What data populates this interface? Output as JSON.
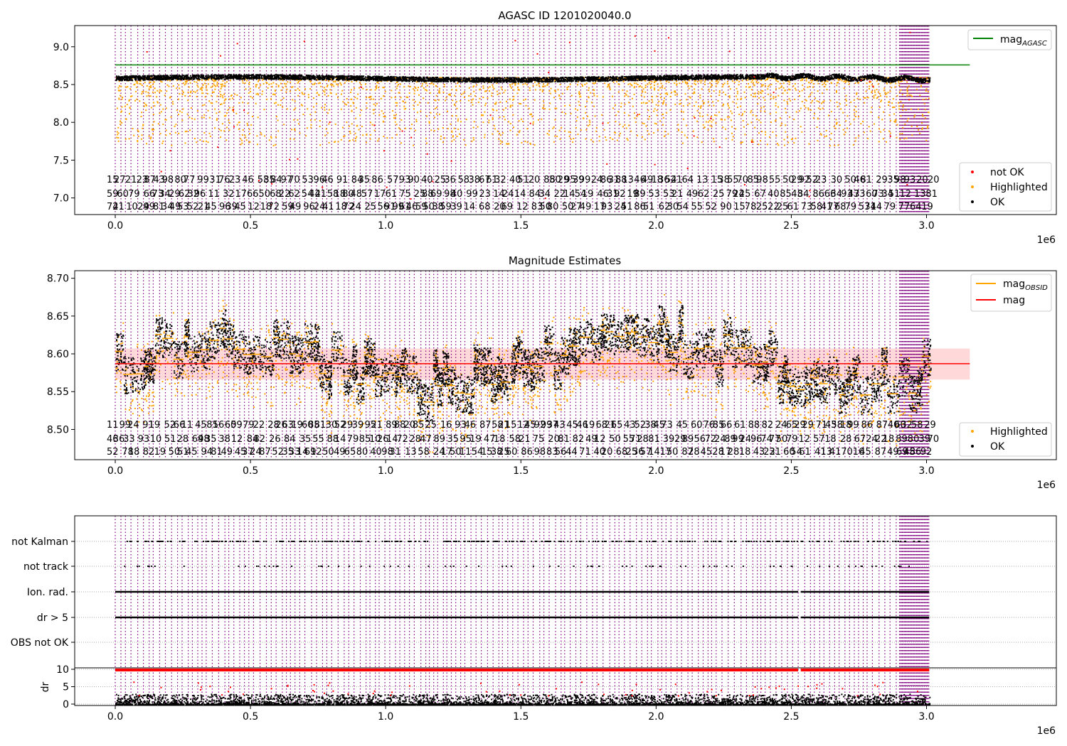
{
  "chart_data": [
    {
      "id": "top",
      "type": "scatter",
      "title": "AGASC ID 1201020040.0",
      "xlim": [
        -150000,
        3480000
      ],
      "ylim": [
        6.78,
        9.28
      ],
      "x_ticks": [
        0.0,
        0.5,
        1.0,
        1.5,
        2.0,
        2.5,
        3.0
      ],
      "y_ticks": [
        7.0,
        7.5,
        8.0,
        8.5,
        9.0
      ],
      "x_offset_label": "1e6",
      "obs_boundaries_x": [
        0,
        3010000
      ],
      "mag_agasc": 8.76,
      "band_center": 8.59,
      "series": [
        {
          "name": "not OK",
          "color": "#ff0000"
        },
        {
          "name": "Highlighted",
          "color": "#ffa500"
        },
        {
          "name": "OK",
          "color": "#000000"
        }
      ],
      "line_legend": [
        {
          "name": "mag",
          "sub": "AGASC",
          "color": "#008000"
        }
      ],
      "scatter_legend_position": "lower right",
      "line_legend_position": "upper right"
    },
    {
      "id": "middle",
      "type": "scatter",
      "title": "Magnitude Estimates",
      "xlim": [
        -150000,
        3480000
      ],
      "ylim": [
        8.46,
        8.71
      ],
      "x_ticks": [
        0.0,
        0.5,
        1.0,
        1.5,
        2.0,
        2.5,
        3.0
      ],
      "y_ticks": [
        8.5,
        8.55,
        8.6,
        8.65,
        8.7
      ],
      "x_offset_label": "1e6",
      "mag_mean": 8.587,
      "mag_band": [
        8.566,
        8.607
      ],
      "series": [
        {
          "name": "Highlighted",
          "color": "#ffa500"
        },
        {
          "name": "OK",
          "color": "#000000"
        }
      ],
      "line_legend": [
        {
          "name": "mag",
          "sub": "OBSID",
          "color": "#ffa500"
        },
        {
          "name": "mag",
          "sub": "",
          "color": "#ff0000"
        }
      ],
      "scatter_legend_position": "lower right",
      "line_legend_position": "upper right"
    },
    {
      "id": "flags",
      "type": "scatter",
      "xlim": [
        -150000,
        3480000
      ],
      "rows": [
        "not Kalman",
        "not track",
        "Ion. rad.",
        "dr > 5",
        "OBS not OK"
      ],
      "x_ticks": [
        0.0,
        0.5,
        1.0,
        1.5,
        2.0,
        2.5,
        3.0
      ],
      "x_offset_label": "1e6",
      "dr_ylabel": "dr",
      "dr_ylim": [
        0,
        10
      ],
      "dr_ticks": [
        0,
        5,
        10
      ],
      "gap_x": [
        2525000,
        2535000
      ]
    }
  ],
  "colors": {
    "ok": "#000000",
    "highlighted": "#ffa500",
    "not_ok": "#ff0000",
    "obs_lines": "#800080",
    "agasc_line": "#008000",
    "mag_line": "#ff0000",
    "band": "#ffcccc"
  }
}
